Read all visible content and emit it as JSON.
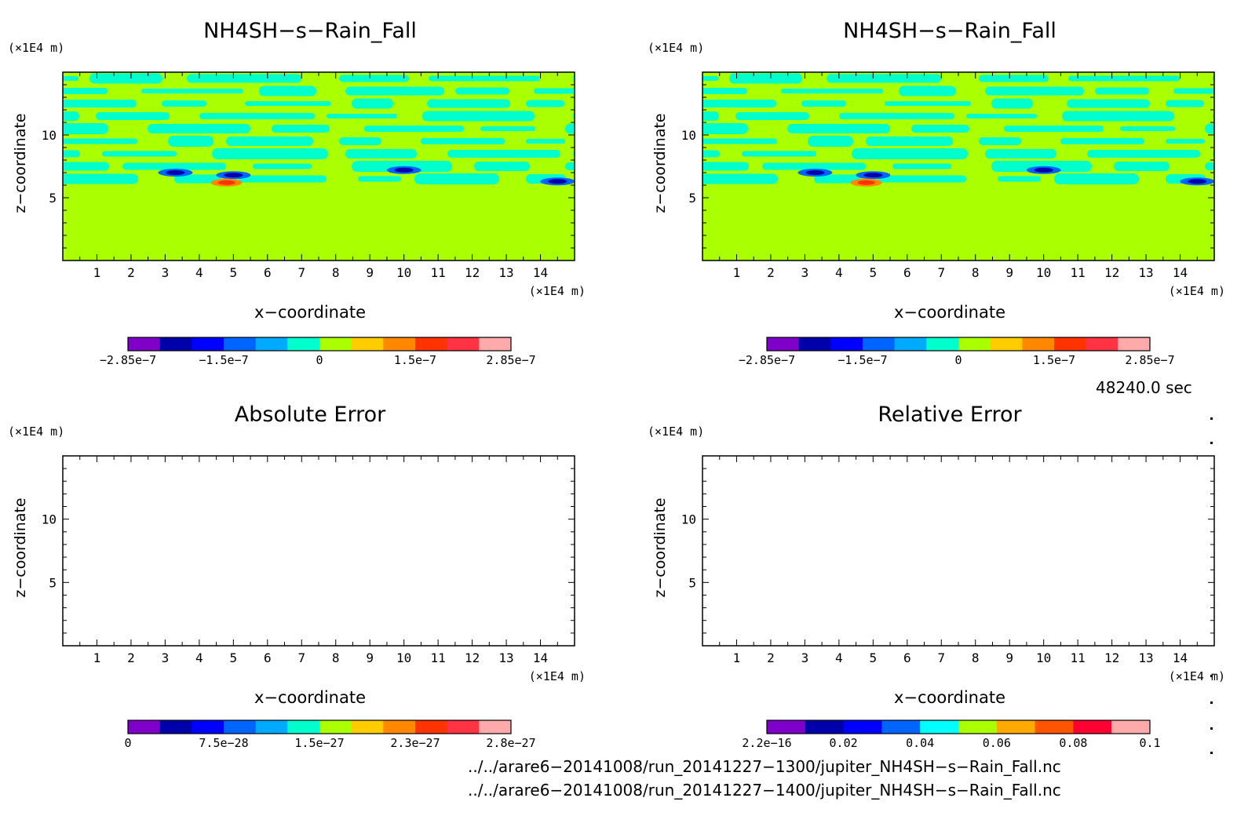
{
  "chart_data": [
    {
      "type": "heatmap",
      "title": "NH4SH−s−Rain_Fall",
      "xlabel": "x−coordinate",
      "ylabel": "z−coordinate",
      "x_unit": "(×1E4 m)",
      "y_unit": "(×1E4 m)",
      "xlim": [
        0,
        15
      ],
      "ylim": [
        0,
        15
      ],
      "x_ticks": [
        "1",
        "2",
        "3",
        "4",
        "5",
        "6",
        "7",
        "8",
        "9",
        "10",
        "11",
        "12",
        "13",
        "14"
      ],
      "y_ticks": [
        "5",
        "10"
      ],
      "colorbar": {
        "colors": [
          "#7f00c8",
          "#0000aa",
          "#0000ff",
          "#0064ff",
          "#00aaff",
          "#00ffcc",
          "#aaff00",
          "#ffcc00",
          "#ff8800",
          "#ff3300",
          "#ff3344",
          "#ffaaaa"
        ],
        "labels": [
          "−2.85e−7",
          "−1.5e−7",
          "0",
          "1.5e−7",
          "2.85e−7"
        ],
        "label_values": [
          -2.85e-07,
          -1.5e-07,
          0,
          1.5e-07,
          2.85e-07
        ],
        "vmin": -2.85e-07,
        "vmax": 2.85e-07
      },
      "field_description": {
        "background_color": "#aaff00",
        "band_color": "#00ffcc",
        "band_z_range": [
          6,
          15
        ],
        "features": [
          {
            "x": 5.0,
            "z": 6.8,
            "sign": "negative"
          },
          {
            "x": 4.8,
            "z": 6.2,
            "sign": "positive"
          },
          {
            "x": 3.3,
            "z": 7.0,
            "sign": "negative"
          },
          {
            "x": 10.0,
            "z": 7.2,
            "sign": "negative"
          },
          {
            "x": 14.5,
            "z": 6.3,
            "sign": "negative"
          }
        ]
      }
    },
    {
      "type": "heatmap",
      "title": "NH4SH−s−Rain_Fall",
      "xlabel": "x−coordinate",
      "ylabel": "z−coordinate",
      "x_unit": "(×1E4 m)",
      "y_unit": "(×1E4 m)",
      "xlim": [
        0,
        15
      ],
      "ylim": [
        0,
        15
      ],
      "x_ticks": [
        "1",
        "2",
        "3",
        "4",
        "5",
        "6",
        "7",
        "8",
        "9",
        "10",
        "11",
        "12",
        "13",
        "14"
      ],
      "y_ticks": [
        "5",
        "10"
      ],
      "colorbar": {
        "colors": [
          "#7f00c8",
          "#0000aa",
          "#0000ff",
          "#0064ff",
          "#00aaff",
          "#00ffcc",
          "#aaff00",
          "#ffcc00",
          "#ff8800",
          "#ff3300",
          "#ff3344",
          "#ffaaaa"
        ],
        "labels": [
          "−2.85e−7",
          "−1.5e−7",
          "0",
          "1.5e−7",
          "2.85e−7"
        ],
        "label_values": [
          -2.85e-07,
          -1.5e-07,
          0,
          1.5e-07,
          2.85e-07
        ],
        "vmin": -2.85e-07,
        "vmax": 2.85e-07
      },
      "field_description": {
        "background_color": "#aaff00",
        "band_color": "#00ffcc",
        "band_z_range": [
          6,
          15
        ],
        "features": [
          {
            "x": 5.0,
            "z": 6.8,
            "sign": "negative"
          },
          {
            "x": 4.8,
            "z": 6.2,
            "sign": "positive"
          },
          {
            "x": 3.3,
            "z": 7.0,
            "sign": "negative"
          },
          {
            "x": 10.0,
            "z": 7.2,
            "sign": "negative"
          },
          {
            "x": 14.5,
            "z": 6.3,
            "sign": "negative"
          }
        ]
      }
    },
    {
      "type": "heatmap",
      "title": "Absolute Error",
      "xlabel": "x−coordinate",
      "ylabel": "z−coordinate",
      "x_unit": "(×1E4 m)",
      "y_unit": "(×1E4 m)",
      "xlim": [
        0,
        15
      ],
      "ylim": [
        0,
        15
      ],
      "x_ticks": [
        "1",
        "2",
        "3",
        "4",
        "5",
        "6",
        "7",
        "8",
        "9",
        "10",
        "11",
        "12",
        "13",
        "14"
      ],
      "y_ticks": [
        "5",
        "10"
      ],
      "colorbar": {
        "colors": [
          "#7f00c8",
          "#0000aa",
          "#0000ff",
          "#0064ff",
          "#00aaff",
          "#00ffcc",
          "#aaff00",
          "#ffcc00",
          "#ff8800",
          "#ff3300",
          "#ff3344",
          "#ffaaaa"
        ],
        "labels": [
          "0",
          "7.5e−28",
          "1.5e−27",
          "2.3e−27",
          "2.8e−27"
        ],
        "label_values": [
          0,
          7.5e-28,
          1.5e-27,
          2.3e-27,
          2.8e-27
        ],
        "vmin": 0,
        "vmax": 2.8e-27
      },
      "field_description": {
        "background_color": "#ffffff",
        "features": []
      }
    },
    {
      "type": "heatmap",
      "title": "Relative Error",
      "xlabel": "x−coordinate",
      "ylabel": "z−coordinate",
      "x_unit": "(×1E4 m)",
      "y_unit": "(×1E4 m)",
      "xlim": [
        0,
        15
      ],
      "ylim": [
        0,
        15
      ],
      "x_ticks": [
        "1",
        "2",
        "3",
        "4",
        "5",
        "6",
        "7",
        "8",
        "9",
        "10",
        "11",
        "12",
        "13",
        "14"
      ],
      "y_ticks": [
        "5",
        "10"
      ],
      "colorbar": {
        "colors": [
          "#7f00c8",
          "#0000aa",
          "#0000ff",
          "#0064ff",
          "#00ffff",
          "#aaff00",
          "#ffaa00",
          "#ff5500",
          "#ff0033",
          "#ffaaaa"
        ],
        "labels": [
          "2.2e−16",
          "0.02",
          "0.04",
          "0.06",
          "0.08",
          "0.1"
        ],
        "label_values": [
          2.2e-16,
          0.02,
          0.04,
          0.06,
          0.08,
          0.1
        ],
        "vmin": 0,
        "vmax": 0.1
      },
      "field_description": {
        "background_color": "#ffffff",
        "features": []
      }
    }
  ],
  "time_label": "48240.0 sec",
  "files": [
    "../../arare6−20141008/run_20141227−1300/jupiter_NH4SH−s−Rain_Fall.nc",
    "../../arare6−20141008/run_20141227−1400/jupiter_NH4SH−s−Rain_Fall.nc"
  ]
}
